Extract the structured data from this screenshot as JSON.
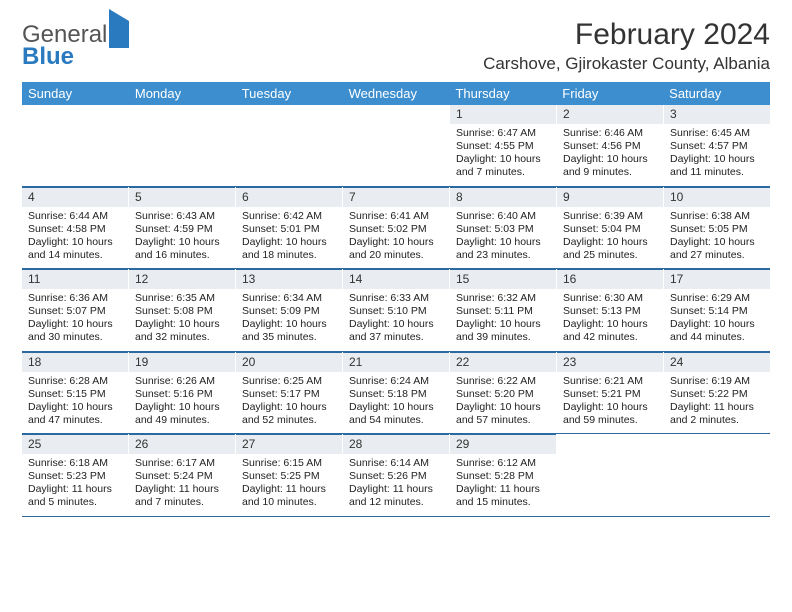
{
  "brand": {
    "line1": "General",
    "line2": "Blue"
  },
  "title": "February 2024",
  "location": "Carshove, Gjirokaster County, Albania",
  "colors": {
    "header_bg": "#3c8ecf",
    "rule": "#2a6aa0",
    "daynum_bg": "#e9edf1"
  },
  "day_headers": [
    "Sunday",
    "Monday",
    "Tuesday",
    "Wednesday",
    "Thursday",
    "Friday",
    "Saturday"
  ],
  "weeks": [
    [
      {
        "n": "",
        "t": ""
      },
      {
        "n": "",
        "t": ""
      },
      {
        "n": "",
        "t": ""
      },
      {
        "n": "",
        "t": ""
      },
      {
        "n": "1",
        "t": "Sunrise: 6:47 AM\nSunset: 4:55 PM\nDaylight: 10 hours and 7 minutes."
      },
      {
        "n": "2",
        "t": "Sunrise: 6:46 AM\nSunset: 4:56 PM\nDaylight: 10 hours and 9 minutes."
      },
      {
        "n": "3",
        "t": "Sunrise: 6:45 AM\nSunset: 4:57 PM\nDaylight: 10 hours and 11 minutes."
      }
    ],
    [
      {
        "n": "4",
        "t": "Sunrise: 6:44 AM\nSunset: 4:58 PM\nDaylight: 10 hours and 14 minutes."
      },
      {
        "n": "5",
        "t": "Sunrise: 6:43 AM\nSunset: 4:59 PM\nDaylight: 10 hours and 16 minutes."
      },
      {
        "n": "6",
        "t": "Sunrise: 6:42 AM\nSunset: 5:01 PM\nDaylight: 10 hours and 18 minutes."
      },
      {
        "n": "7",
        "t": "Sunrise: 6:41 AM\nSunset: 5:02 PM\nDaylight: 10 hours and 20 minutes."
      },
      {
        "n": "8",
        "t": "Sunrise: 6:40 AM\nSunset: 5:03 PM\nDaylight: 10 hours and 23 minutes."
      },
      {
        "n": "9",
        "t": "Sunrise: 6:39 AM\nSunset: 5:04 PM\nDaylight: 10 hours and 25 minutes."
      },
      {
        "n": "10",
        "t": "Sunrise: 6:38 AM\nSunset: 5:05 PM\nDaylight: 10 hours and 27 minutes."
      }
    ],
    [
      {
        "n": "11",
        "t": "Sunrise: 6:36 AM\nSunset: 5:07 PM\nDaylight: 10 hours and 30 minutes."
      },
      {
        "n": "12",
        "t": "Sunrise: 6:35 AM\nSunset: 5:08 PM\nDaylight: 10 hours and 32 minutes."
      },
      {
        "n": "13",
        "t": "Sunrise: 6:34 AM\nSunset: 5:09 PM\nDaylight: 10 hours and 35 minutes."
      },
      {
        "n": "14",
        "t": "Sunrise: 6:33 AM\nSunset: 5:10 PM\nDaylight: 10 hours and 37 minutes."
      },
      {
        "n": "15",
        "t": "Sunrise: 6:32 AM\nSunset: 5:11 PM\nDaylight: 10 hours and 39 minutes."
      },
      {
        "n": "16",
        "t": "Sunrise: 6:30 AM\nSunset: 5:13 PM\nDaylight: 10 hours and 42 minutes."
      },
      {
        "n": "17",
        "t": "Sunrise: 6:29 AM\nSunset: 5:14 PM\nDaylight: 10 hours and 44 minutes."
      }
    ],
    [
      {
        "n": "18",
        "t": "Sunrise: 6:28 AM\nSunset: 5:15 PM\nDaylight: 10 hours and 47 minutes."
      },
      {
        "n": "19",
        "t": "Sunrise: 6:26 AM\nSunset: 5:16 PM\nDaylight: 10 hours and 49 minutes."
      },
      {
        "n": "20",
        "t": "Sunrise: 6:25 AM\nSunset: 5:17 PM\nDaylight: 10 hours and 52 minutes."
      },
      {
        "n": "21",
        "t": "Sunrise: 6:24 AM\nSunset: 5:18 PM\nDaylight: 10 hours and 54 minutes."
      },
      {
        "n": "22",
        "t": "Sunrise: 6:22 AM\nSunset: 5:20 PM\nDaylight: 10 hours and 57 minutes."
      },
      {
        "n": "23",
        "t": "Sunrise: 6:21 AM\nSunset: 5:21 PM\nDaylight: 10 hours and 59 minutes."
      },
      {
        "n": "24",
        "t": "Sunrise: 6:19 AM\nSunset: 5:22 PM\nDaylight: 11 hours and 2 minutes."
      }
    ],
    [
      {
        "n": "25",
        "t": "Sunrise: 6:18 AM\nSunset: 5:23 PM\nDaylight: 11 hours and 5 minutes."
      },
      {
        "n": "26",
        "t": "Sunrise: 6:17 AM\nSunset: 5:24 PM\nDaylight: 11 hours and 7 minutes."
      },
      {
        "n": "27",
        "t": "Sunrise: 6:15 AM\nSunset: 5:25 PM\nDaylight: 11 hours and 10 minutes."
      },
      {
        "n": "28",
        "t": "Sunrise: 6:14 AM\nSunset: 5:26 PM\nDaylight: 11 hours and 12 minutes."
      },
      {
        "n": "29",
        "t": "Sunrise: 6:12 AM\nSunset: 5:28 PM\nDaylight: 11 hours and 15 minutes."
      },
      {
        "n": "",
        "t": ""
      },
      {
        "n": "",
        "t": ""
      }
    ]
  ]
}
